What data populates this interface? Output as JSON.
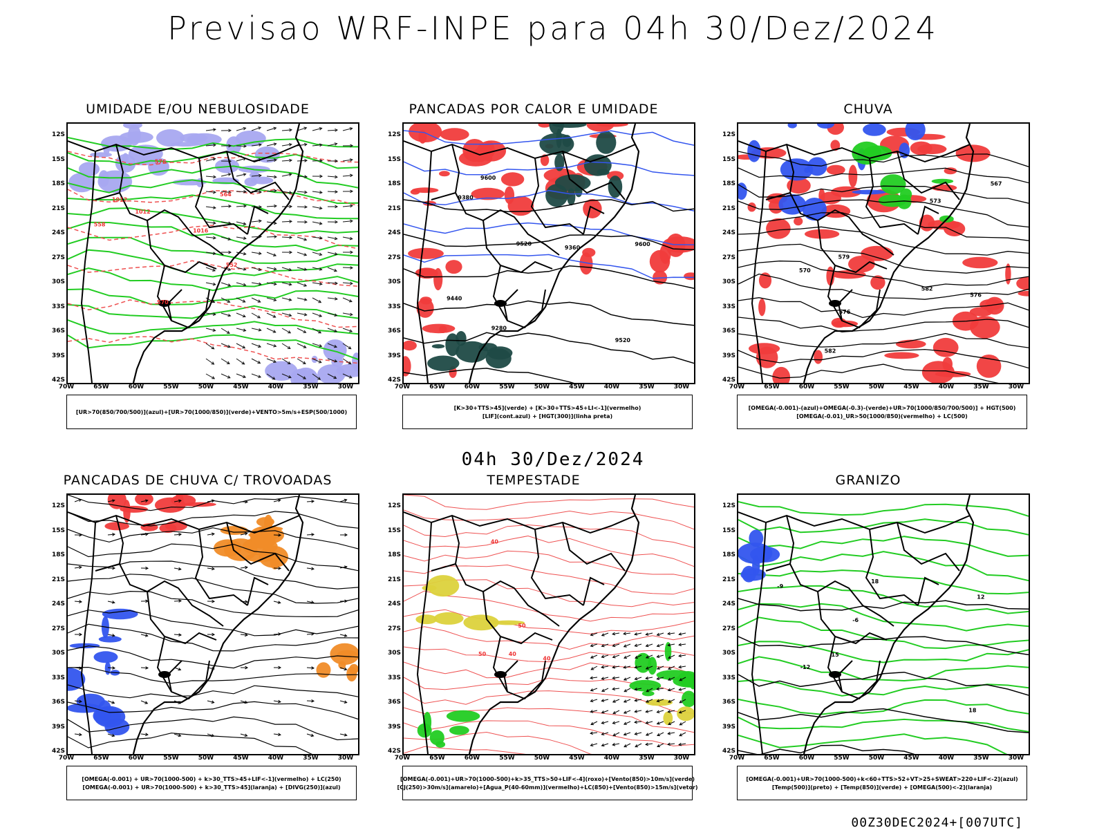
{
  "header": {
    "title": "Previsao WRF-INPE  para 04h 30/Dez/2024"
  },
  "middle_time": "04h 30/Dez/2024",
  "footer": "00Z30DEC2024+[007UTC]",
  "axes": {
    "lat_labels": [
      "12S",
      "15S",
      "18S",
      "21S",
      "24S",
      "27S",
      "30S",
      "33S",
      "36S",
      "39S",
      "42S"
    ],
    "lon_labels": [
      "70W",
      "65W",
      "60W",
      "55W",
      "50W",
      "45W",
      "40W",
      "35W",
      "30W"
    ]
  },
  "panels": [
    {
      "title": "UMIDADE E/OU NEBULOSIDADE",
      "legend": [
        "[UR>70(850/700/500)](azul)+[UR>70(1000/850)](verde)+VENTO>5m/s+ESP(500/1000)"
      ],
      "contour_labels": [
        "1012",
        "1012",
        "1016",
        "576",
        "570",
        "564",
        "558",
        "552"
      ]
    },
    {
      "title": "PANCADAS POR CALOR E UMIDADE",
      "legend": [
        "[K>30+TTS>45](verde) + [K>30+TTS>45+LI<-1](vermelho)",
        "[LIF](cont.azul) + [HGT(300)](linha preta)"
      ],
      "contour_labels": [
        "9600",
        "9600",
        "9520",
        "9520",
        "9440",
        "9380",
        "9360",
        "9280"
      ]
    },
    {
      "title": "CHUVA",
      "legend": [
        "[OMEGA(-0.001)-(azul)+OMEGA(-0.3)-(verde)+UR>70(1000/850/700/500)] + HGT(500)",
        "[OMEGA(-0.01)_UR>50(1000/850)(vermelho) + LC(500)"
      ],
      "contour_labels": [
        "582",
        "582",
        "579",
        "576",
        "576",
        "573",
        "570",
        "567"
      ]
    },
    {
      "title": "PANCADAS DE CHUVA C/ TROVOADAS",
      "legend": [
        "[OMEGA(-0.001) + UR>70(1000-500) + k>30_TTS>45+LIF<-1](vermelho) + LC(250)",
        "[OMEGA(-0.001) + UR>70(1000-500) + k>30_TTS>45](laranja) + [DIVG(250)](azul)"
      ],
      "contour_labels": []
    },
    {
      "title": "TEMPESTADE",
      "legend": [
        "[OMEGA(-0.001)+UR>70(1000-500)+k>35_TTS>50+LIF<-4](roxo)+[Vento(850)>10m/s](verde)",
        "[CJ(250)>30m/s](amarelo)+[Agua_P(40-60mm)](vermelho)+LC(850)+[Vento(850)>15m/s](vetor)"
      ],
      "contour_labels": [
        "40",
        "40",
        "50",
        "50",
        "40"
      ]
    },
    {
      "title": "GRANIZO",
      "legend": [
        "[OMEGA(-0.001)+UR>70(1000-500)+k<60+TTS>52+VT>25+SWEAT>220+LIF<-2](azul)",
        "[Temp(500)](preto) + [Temp(850)](verde) + [OMEGA(500)<-2](laranja)"
      ],
      "contour_labels": [
        "-6",
        "-9",
        "-12",
        "12",
        "15",
        "18",
        "18"
      ]
    }
  ],
  "colors": {
    "blue": "#3355ee",
    "lightblue": "#a8a8f0",
    "green": "#22cc22",
    "red": "#f03c3c",
    "darkgreen": "#1f4a46",
    "orange": "#f08c28",
    "yellow": "#dcd23c",
    "redline": "#ee5050"
  }
}
